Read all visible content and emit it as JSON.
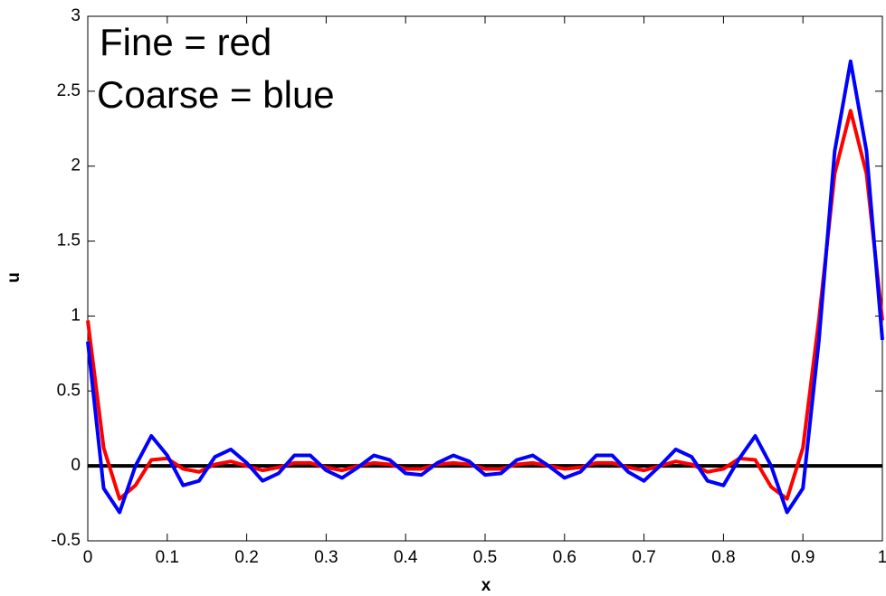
{
  "chart_data": {
    "type": "line",
    "xlabel": "x",
    "ylabel": "u",
    "annotations": [
      "Fine = red",
      "Coarse = blue"
    ],
    "x": [
      0,
      0.02,
      0.04,
      0.06,
      0.08,
      0.1,
      0.12,
      0.14,
      0.16,
      0.18,
      0.2,
      0.22,
      0.24,
      0.26,
      0.28,
      0.3,
      0.32,
      0.34,
      0.36,
      0.38,
      0.4,
      0.42,
      0.44,
      0.46,
      0.48,
      0.5,
      0.52,
      0.54,
      0.56,
      0.58,
      0.6,
      0.62,
      0.64,
      0.66,
      0.68,
      0.7,
      0.72,
      0.74,
      0.76,
      0.78,
      0.8,
      0.82,
      0.84,
      0.86,
      0.88,
      0.9,
      0.92,
      0.94,
      0.96,
      0.98,
      1
    ],
    "series": [
      {
        "color": "#ff0000",
        "values": [
          0.97,
          0.12,
          -0.22,
          -0.13,
          0.04,
          0.05,
          -0.02,
          -0.04,
          0.01,
          0.03,
          0.0,
          -0.03,
          -0.01,
          0.02,
          0.02,
          -0.01,
          -0.03,
          0.0,
          0.02,
          0.01,
          -0.02,
          -0.02,
          0.01,
          0.02,
          0.01,
          -0.02,
          -0.02,
          0.01,
          0.02,
          0.0,
          -0.02,
          -0.01,
          0.02,
          0.02,
          -0.01,
          -0.03,
          0.0,
          0.03,
          0.01,
          -0.04,
          -0.02,
          0.05,
          0.04,
          -0.14,
          -0.22,
          0.12,
          0.97,
          1.95,
          2.37,
          1.95,
          0.97
        ]
      },
      {
        "color": "#0000ff",
        "values": [
          0.83,
          -0.15,
          -0.31,
          0.0,
          0.2,
          0.07,
          -0.13,
          -0.1,
          0.06,
          0.11,
          0.02,
          -0.1,
          -0.05,
          0.07,
          0.07,
          -0.03,
          -0.08,
          -0.01,
          0.07,
          0.04,
          -0.05,
          -0.06,
          0.02,
          0.07,
          0.03,
          -0.06,
          -0.05,
          0.04,
          0.07,
          0.0,
          -0.08,
          -0.04,
          0.07,
          0.07,
          -0.04,
          -0.1,
          0.0,
          0.11,
          0.06,
          -0.1,
          -0.13,
          0.05,
          0.2,
          0.0,
          -0.31,
          -0.15,
          0.83,
          2.1,
          2.7,
          2.1,
          0.84
        ]
      }
    ],
    "hlines": [
      0
    ],
    "xlim": [
      0,
      1
    ],
    "xticks": [
      0,
      0.1,
      0.2,
      0.3,
      0.4,
      0.5,
      0.6,
      0.7,
      0.8,
      0.9,
      1
    ],
    "ylim": [
      -0.5,
      3
    ],
    "yticks": [
      -0.5,
      0,
      0.5,
      1,
      1.5,
      2,
      2.5,
      3
    ]
  }
}
